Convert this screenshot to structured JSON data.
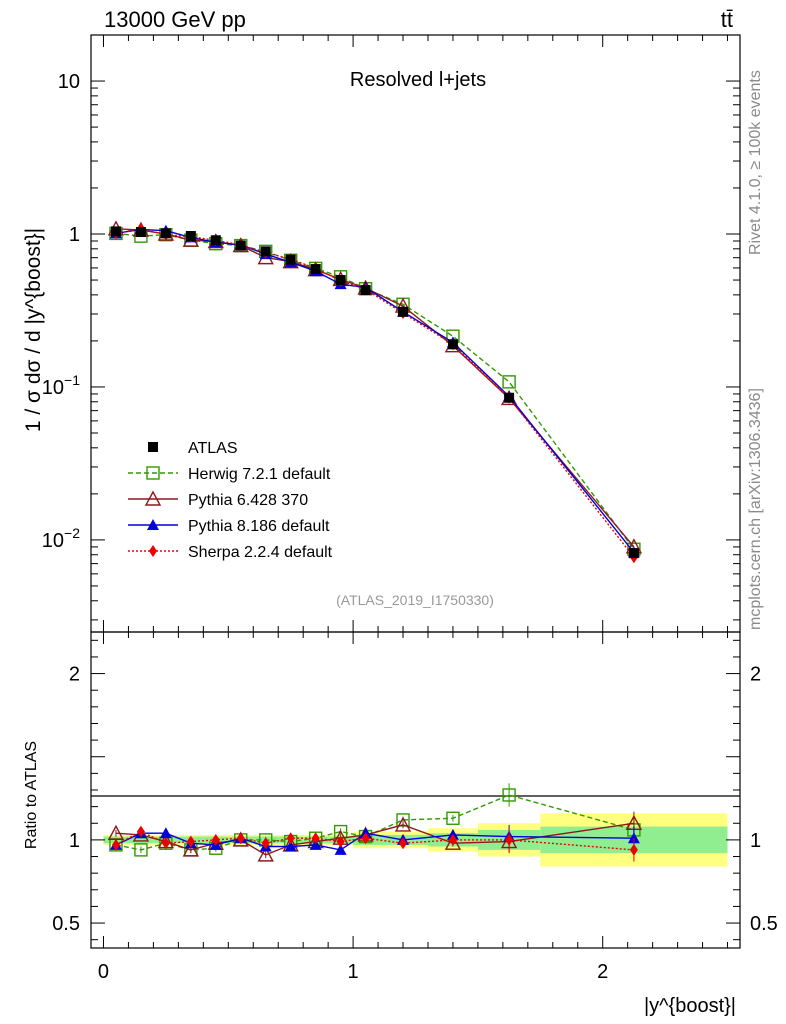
{
  "header": {
    "left": "13000 GeV pp",
    "right": "tt̄"
  },
  "side_labels": {
    "top": "Rivet 4.1.0, ≥ 100k events",
    "bottom": "mcplots.cern.ch [arXiv:1306.3436]"
  },
  "chart_data": {
    "type": "line",
    "title": "Resolved l+jets",
    "watermark": "(ATLAS_2019_I1750330)",
    "xlabel": "|y^{boost}|",
    "ylabel": "1 / σ dσ / d |y^{boost}|",
    "ratio_ylabel": "Ratio to ATLAS",
    "xlim": [
      -0.05,
      2.55
    ],
    "ylim": [
      0.0025,
      20
    ],
    "yscale": "log",
    "ratio_ylim": [
      0.35,
      2.25
    ],
    "x_ticks": [
      "0",
      "1",
      "2"
    ],
    "y_ticks": [
      "10",
      "1",
      "10^−1",
      "10^−2"
    ],
    "ratio_ticks": [
      "2",
      "1",
      "0.5",
      "1",
      "2",
      "0.5"
    ],
    "x": [
      0.05,
      0.15,
      0.25,
      0.35,
      0.45,
      0.55,
      0.65,
      0.75,
      0.85,
      0.95,
      1.05,
      1.2,
      1.4,
      1.625,
      2.125
    ],
    "data": {
      "name": "ATLAS",
      "values": [
        1.04,
        1.03,
        1.01,
        0.97,
        0.91,
        0.84,
        0.77,
        0.68,
        0.59,
        0.5,
        0.43,
        0.31,
        0.19,
        0.085,
        0.0082
      ],
      "bin_edges": [
        0.0,
        0.1,
        0.2,
        0.3,
        0.4,
        0.5,
        0.6,
        0.7,
        0.8,
        0.9,
        1.0,
        1.1,
        1.3,
        1.5,
        1.75,
        2.5
      ],
      "stat_band": [
        0.02,
        0.02,
        0.02,
        0.02,
        0.02,
        0.02,
        0.02,
        0.02,
        0.02,
        0.02,
        0.03,
        0.03,
        0.04,
        0.06,
        0.08
      ],
      "total_band": [
        0.03,
        0.03,
        0.03,
        0.03,
        0.03,
        0.03,
        0.03,
        0.03,
        0.03,
        0.03,
        0.05,
        0.05,
        0.07,
        0.1,
        0.16
      ]
    },
    "series": [
      {
        "name": "Herwig 7.2.1 default",
        "color": "#339900",
        "marker": "open-square",
        "dash": "5,3",
        "ratio": [
          0.97,
          0.94,
          0.98,
          0.94,
          0.95,
          1.0,
          1.0,
          0.99,
          1.01,
          1.05,
          1.02,
          1.12,
          1.13,
          1.27,
          1.06
        ]
      },
      {
        "name": "Pythia 6.428 370",
        "color": "#8b1a1a",
        "marker": "open-triangle",
        "dash": "",
        "ratio": [
          1.04,
          1.03,
          0.99,
          0.94,
          0.98,
          1.0,
          0.91,
          0.97,
          0.99,
          1.01,
          1.03,
          1.09,
          0.98,
          0.99,
          1.1
        ]
      },
      {
        "name": "Pythia 8.186 default",
        "color": "#0000dd",
        "marker": "filled-triangle",
        "dash": "",
        "ratio": [
          0.97,
          1.04,
          1.04,
          0.98,
          0.97,
          1.01,
          0.96,
          0.96,
          0.97,
          0.94,
          1.04,
          1.0,
          1.03,
          1.02,
          1.01
        ]
      },
      {
        "name": "Sherpa 2.2.4 default",
        "color": "#ee0000",
        "marker": "filled-diamond",
        "dash": "2,2",
        "ratio": [
          0.97,
          1.05,
          0.98,
          0.99,
          1.0,
          1.01,
          0.98,
          1.01,
          1.01,
          0.99,
          1.01,
          0.98,
          1.0,
          1.0,
          0.94
        ]
      }
    ]
  }
}
